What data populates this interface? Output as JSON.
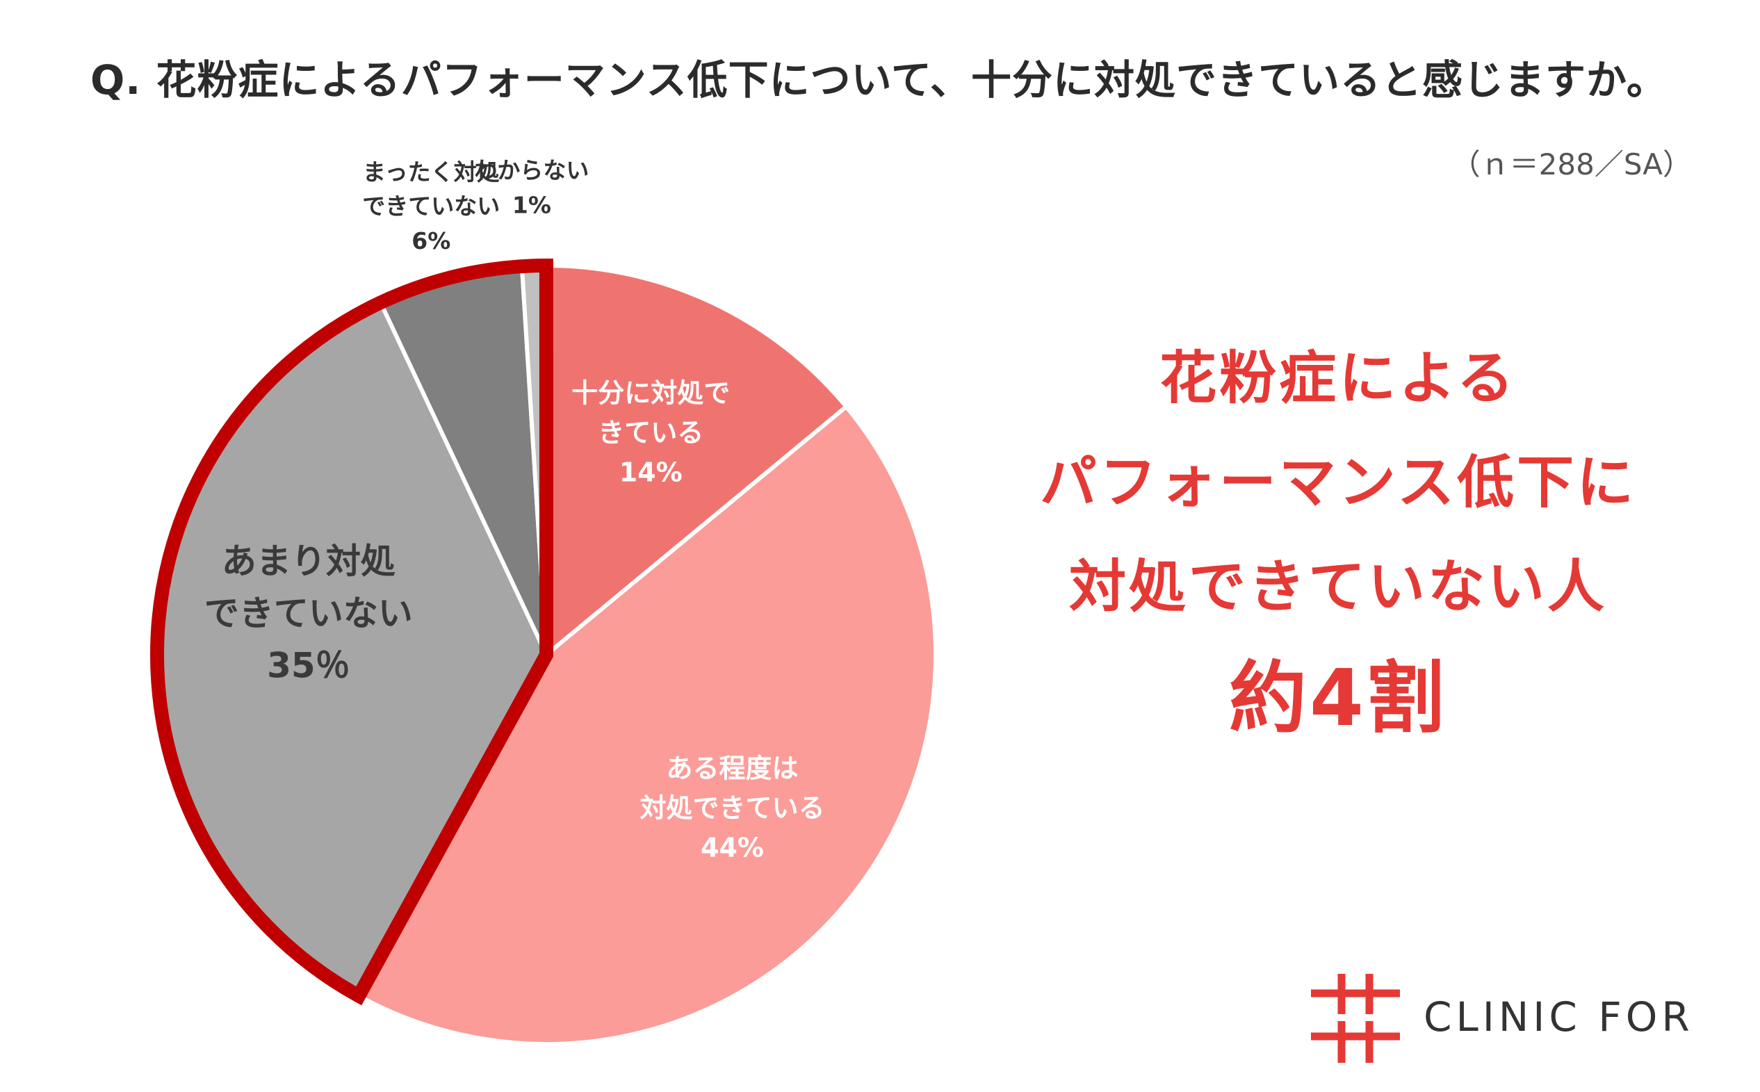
{
  "title": "Q.  花粉症によるパフォーマンス低下について、十分に対処できていると感じますか。",
  "sample_note": "（ｎ＝288／SA）",
  "callout": {
    "line1": "花粉症による",
    "line2": "パフォーマンス低下に",
    "line3": "対処できていない人",
    "line4": "約4割"
  },
  "logo": {
    "text": "CLINIC FOR",
    "color": "#e53935"
  },
  "colors": {
    "highlight_outline": "#c00000",
    "accent_text": "#e53935"
  },
  "chart_data": {
    "type": "pie",
    "start_angle": "12 o'clock",
    "direction": "clockwise",
    "slices": [
      {
        "label_lines": [
          "十分に対処で",
          "きている"
        ],
        "value": 14,
        "value_label": "14%",
        "color": "#ef7470"
      },
      {
        "label_lines": [
          "ある程度は",
          "対処できている"
        ],
        "value": 44,
        "value_label": "44%",
        "color": "#fb9c98"
      },
      {
        "label_lines": [
          "あまり対処",
          "できていない"
        ],
        "value": 35,
        "value_label": "35％",
        "color": "#a6a6a6"
      },
      {
        "label_lines": [
          "まったく対処",
          "できていない"
        ],
        "value": 6,
        "value_label": "6%",
        "color": "#808080"
      },
      {
        "label_lines": [
          "わからない"
        ],
        "value": 1,
        "value_label": "1%",
        "color": "#c0c0c0"
      }
    ],
    "highlighted": [
      "あまり対処できていない",
      "まったく対処できていない"
    ]
  }
}
